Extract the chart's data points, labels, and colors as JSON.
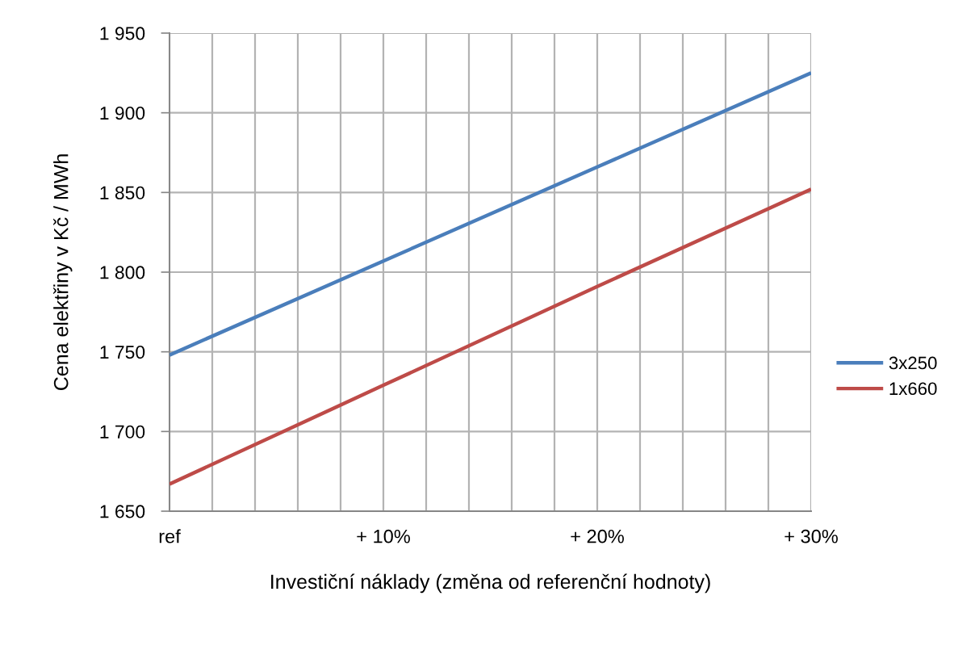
{
  "chart_data": {
    "type": "line",
    "xlabel": "Investiční náklady (změna od referenční hodnoty)",
    "ylabel": "Cena elektřiny v Kč / MWh",
    "x": [
      0,
      10,
      20,
      30
    ],
    "series": [
      {
        "name": "3x250",
        "color": "#4a7ebb",
        "values": [
          1748,
          1807,
          1866,
          1925
        ]
      },
      {
        "name": "1x660",
        "color": "#be4b48",
        "values": [
          1667,
          1729,
          1791,
          1852
        ]
      }
    ],
    "xlim": [
      0,
      30
    ],
    "xticks": [
      {
        "value": 0,
        "label": "ref"
      },
      {
        "value": 2,
        "label": null
      },
      {
        "value": 4,
        "label": null
      },
      {
        "value": 6,
        "label": null
      },
      {
        "value": 8,
        "label": null
      },
      {
        "value": 10,
        "label": "+ 10%"
      },
      {
        "value": 12,
        "label": null
      },
      {
        "value": 14,
        "label": null
      },
      {
        "value": 16,
        "label": null
      },
      {
        "value": 18,
        "label": null
      },
      {
        "value": 20,
        "label": "+ 20%"
      },
      {
        "value": 22,
        "label": null
      },
      {
        "value": 24,
        "label": null
      },
      {
        "value": 26,
        "label": null
      },
      {
        "value": 28,
        "label": null
      },
      {
        "value": 30,
        "label": "+ 30%"
      }
    ],
    "ylim": [
      1650,
      1950
    ],
    "yticks": [
      {
        "value": 1650,
        "label": "1 650"
      },
      {
        "value": 1700,
        "label": "1 700"
      },
      {
        "value": 1750,
        "label": "1 750"
      },
      {
        "value": 1800,
        "label": "1 800"
      },
      {
        "value": 1850,
        "label": "1 850"
      },
      {
        "value": 1900,
        "label": "1 900"
      },
      {
        "value": 1950,
        "label": "1 950"
      }
    ],
    "grid": true,
    "legend": "right",
    "line_style": "solid"
  }
}
